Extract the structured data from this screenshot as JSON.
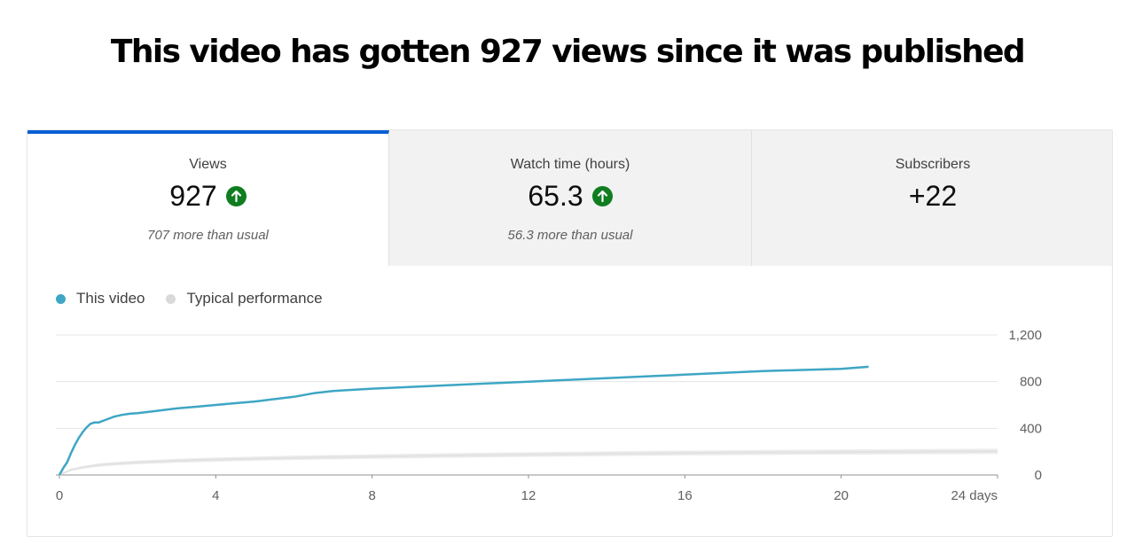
{
  "headline": "This video has gotten 927 views since it was published",
  "tabs": [
    {
      "label": "Views",
      "value": "927",
      "trend": "up",
      "note": "707 more than usual"
    },
    {
      "label": "Watch time (hours)",
      "value": "65.3",
      "trend": "up",
      "note": "56.3 more than usual"
    },
    {
      "label": "Subscribers",
      "value": "+22",
      "trend": "",
      "note": ""
    }
  ],
  "colors": {
    "this_video": "#3ea6c4",
    "typical": "#d9d9d9",
    "trend_up": "#0f7d20",
    "active_tab": "#065fd4"
  },
  "chart_data": {
    "type": "line",
    "legend_position": "top-left",
    "grid": true,
    "xlim": [
      0,
      24
    ],
    "ylim": [
      0,
      1200
    ],
    "x_ticks": [
      0,
      4,
      8,
      12,
      16,
      20,
      24
    ],
    "x_tick_labels": [
      "0",
      "4",
      "8",
      "12",
      "16",
      "20",
      "24 days"
    ],
    "y_ticks": [
      0,
      400,
      800,
      1200
    ],
    "y_tick_labels": [
      "0",
      "400",
      "800",
      "1,200"
    ],
    "series": [
      {
        "name": "This video",
        "x": [
          0,
          0.1,
          0.2,
          0.3,
          0.4,
          0.5,
          0.6,
          0.7,
          0.8,
          0.9,
          1.0,
          1.2,
          1.4,
          1.6,
          1.8,
          2.0,
          2.5,
          3.0,
          3.5,
          4.0,
          4.5,
          5.0,
          5.5,
          6.0,
          6.5,
          7.0,
          8.0,
          9.0,
          10.0,
          11.0,
          12.0,
          13.0,
          14.0,
          15.0,
          16.0,
          17.0,
          18.0,
          19.0,
          20.0,
          20.7
        ],
        "y": [
          0,
          60,
          110,
          190,
          260,
          320,
          370,
          410,
          440,
          450,
          450,
          475,
          500,
          515,
          525,
          530,
          550,
          570,
          585,
          600,
          615,
          630,
          650,
          670,
          700,
          720,
          740,
          755,
          770,
          785,
          800,
          815,
          830,
          845,
          860,
          875,
          890,
          900,
          910,
          927
        ]
      },
      {
        "name": "Typical performance",
        "x": [
          0,
          0.3,
          0.6,
          1.0,
          1.5,
          2.0,
          3.0,
          4.0,
          5.0,
          6.0,
          8.0,
          10.0,
          12.0,
          14.0,
          16.0,
          18.0,
          20.0,
          22.0,
          24.0
        ],
        "y": [
          0,
          45,
          65,
          85,
          98,
          108,
          122,
          132,
          140,
          147,
          158,
          167,
          175,
          182,
          188,
          193,
          197,
          200,
          203
        ],
        "band": [
          0,
          10,
          12,
          14,
          15,
          16,
          17,
          18,
          18,
          19,
          19,
          20,
          20,
          21,
          21,
          21,
          22,
          22,
          22
        ]
      }
    ]
  }
}
